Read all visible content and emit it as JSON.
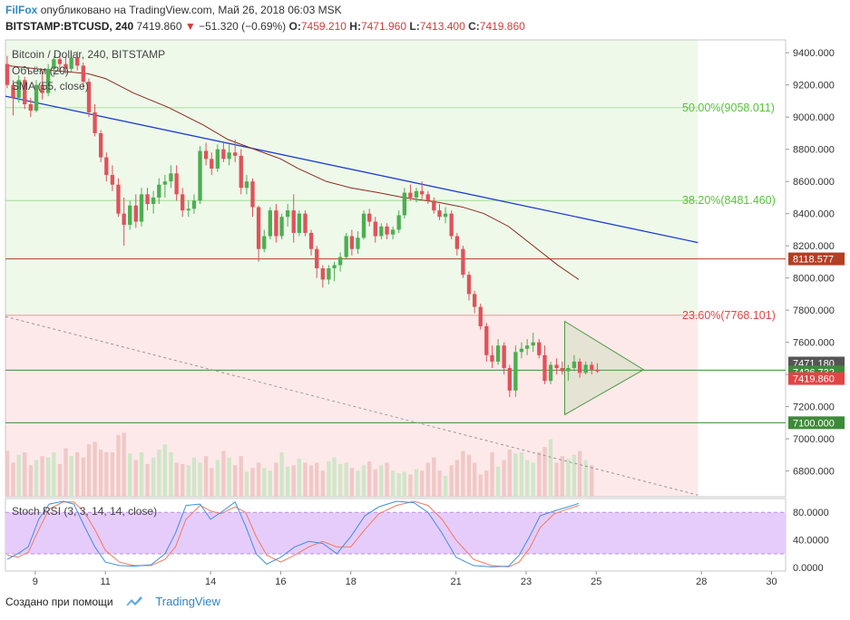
{
  "header": {
    "brand": "FilFox",
    "published_text": "опубликовано на TradingView.com, Май 26, 2018 06:03 MSK",
    "symbol": "BITSTAMP:BTCUSD, 240",
    "last": "7419.860",
    "change_arrow": "▼",
    "change": "−51.320 (−0.69%)",
    "o_label": "O:",
    "o_value": "7459.210",
    "h_label": "H:",
    "h_value": "7471.960",
    "l_label": "L:",
    "l_value": "7413.400",
    "c_label": "C:",
    "c_value": "7419.860"
  },
  "legend": {
    "title": "Bitcoin / Dollar, 240, BITSTAMP",
    "volume": "Объём (20)",
    "sma": "SMA (55, close)"
  },
  "stoch_legend": "Stoch RSI (3, 3, 14, 14, close)",
  "footer": {
    "created_with": "Создано при помощи",
    "brand": "TradingView",
    "icon": "tradingview-cloud-icon"
  },
  "colors": {
    "up": "#4caf50",
    "down": "#e0525a",
    "sma": "#8b2b1a",
    "trendline": "#1f3fcf",
    "fib50": "#58c23a",
    "fib382": "#58c23a",
    "fib236": "#e24545",
    "level_line": "#b33f25",
    "green_zone": "#eef9ea",
    "red_zone": "#fde9e9",
    "stoch_band": "#e6ccfb",
    "stoch_k": "#3f8fe0",
    "stoch_d": "#f07a60"
  },
  "chart_data": {
    "type": "candlestick",
    "title": "Bitcoin / Dollar, 240, BITSTAMP",
    "x_tick_labels": [
      "9",
      "11",
      "14",
      "16",
      "18",
      "21",
      "23",
      "25",
      "28",
      "30"
    ],
    "x_tick_days": [
      9,
      11,
      14,
      16,
      18,
      21,
      23,
      25,
      28,
      30
    ],
    "y_tick_labels": [
      "6800.000",
      "7000.000",
      "7200.000",
      "7400.000",
      "7600.000",
      "7800.000",
      "8000.000",
      "8200.000",
      "8400.000",
      "8600.000",
      "8800.000",
      "9000.000",
      "9200.000",
      "9400.000"
    ],
    "ylim": [
      6640,
      9480
    ],
    "xlim_days": [
      8.15,
      30.4
    ],
    "price_labels": [
      {
        "text": "8118.577",
        "value": 8118.577,
        "color": "#b33f25"
      },
      {
        "text": "7471.180",
        "value": 7471.18,
        "color": "#555555"
      },
      {
        "text": "7426.732",
        "value": 7426.732,
        "color": "#3f8a3a"
      },
      {
        "text": "7419.860",
        "value": 7419.86,
        "color": "#e24545"
      },
      {
        "text": "7100.000",
        "value": 7100,
        "color": "#3f8a3a"
      }
    ],
    "fib_levels": [
      {
        "text": "50.00%(9058.011)",
        "value": 9058.011,
        "color": "#58c23a"
      },
      {
        "text": "38.20%(8481.460)",
        "value": 8481.46,
        "color": "#58c23a"
      },
      {
        "text": "23.60%(7768.101)",
        "value": 7768.101,
        "color": "#e24545"
      }
    ],
    "horizontal_levels": [
      8118.577,
      7426.732,
      7100
    ],
    "trendline": {
      "start": [
        8.15,
        9130
      ],
      "end": [
        27.9,
        8220
      ]
    },
    "dotted_line": {
      "start": [
        8.15,
        7760
      ],
      "end": [
        27.9,
        6650
      ]
    },
    "triangle": {
      "top": [
        24.1,
        7730
      ],
      "apex": [
        26.35,
        7430
      ],
      "bottom": [
        24.1,
        7150
      ]
    },
    "candles": [
      [
        8.2,
        9330,
        9380,
        9180,
        9200
      ],
      [
        8.37,
        9200,
        9230,
        9010,
        9120
      ],
      [
        8.53,
        9120,
        9260,
        9090,
        9230
      ],
      [
        8.7,
        9230,
        9250,
        9050,
        9080
      ],
      [
        8.87,
        9080,
        9120,
        9000,
        9040
      ],
      [
        9.03,
        9040,
        9230,
        9030,
        9200
      ],
      [
        9.2,
        9200,
        9300,
        9110,
        9150
      ],
      [
        9.37,
        9150,
        9330,
        9130,
        9300
      ],
      [
        9.53,
        9300,
        9380,
        9250,
        9360
      ],
      [
        9.7,
        9360,
        9400,
        9280,
        9330
      ],
      [
        9.87,
        9330,
        9380,
        9270,
        9300
      ],
      [
        10.03,
        9300,
        9400,
        9280,
        9370
      ],
      [
        10.2,
        9370,
        9410,
        9290,
        9320
      ],
      [
        10.37,
        9320,
        9340,
        9180,
        9220
      ],
      [
        10.53,
        9220,
        9240,
        9000,
        9030
      ],
      [
        10.7,
        9030,
        9080,
        8880,
        8900
      ],
      [
        10.87,
        8900,
        8920,
        8720,
        8750
      ],
      [
        11.03,
        8750,
        8780,
        8600,
        8640
      ],
      [
        11.2,
        8640,
        8700,
        8540,
        8580
      ],
      [
        11.37,
        8580,
        8620,
        8380,
        8400
      ],
      [
        11.53,
        8400,
        8500,
        8200,
        8330
      ],
      [
        11.7,
        8330,
        8480,
        8300,
        8450
      ],
      [
        11.87,
        8450,
        8520,
        8310,
        8350
      ],
      [
        12.03,
        8350,
        8560,
        8320,
        8520
      ],
      [
        12.2,
        8520,
        8560,
        8420,
        8460
      ],
      [
        12.37,
        8460,
        8540,
        8400,
        8500
      ],
      [
        12.53,
        8500,
        8620,
        8460,
        8580
      ],
      [
        12.7,
        8580,
        8640,
        8500,
        8600
      ],
      [
        12.87,
        8600,
        8700,
        8560,
        8650
      ],
      [
        13.03,
        8650,
        8700,
        8480,
        8520
      ],
      [
        13.2,
        8520,
        8560,
        8380,
        8420
      ],
      [
        13.37,
        8420,
        8480,
        8380,
        8430
      ],
      [
        13.53,
        8430,
        8520,
        8400,
        8480
      ],
      [
        13.7,
        8480,
        8820,
        8460,
        8790
      ],
      [
        13.87,
        8790,
        8840,
        8700,
        8740
      ],
      [
        14.03,
        8740,
        8780,
        8640,
        8680
      ],
      [
        14.2,
        8680,
        8830,
        8660,
        8800
      ],
      [
        14.37,
        8800,
        8850,
        8720,
        8740
      ],
      [
        14.53,
        8740,
        8830,
        8700,
        8780
      ],
      [
        14.7,
        8780,
        8860,
        8720,
        8760
      ],
      [
        14.87,
        8760,
        8800,
        8520,
        8560
      ],
      [
        15.03,
        8560,
        8640,
        8520,
        8600
      ],
      [
        15.2,
        8600,
        8620,
        8380,
        8440
      ],
      [
        15.37,
        8440,
        8450,
        8100,
        8180
      ],
      [
        15.53,
        8180,
        8300,
        8160,
        8260
      ],
      [
        15.7,
        8260,
        8440,
        8240,
        8420
      ],
      [
        15.87,
        8420,
        8460,
        8220,
        8260
      ],
      [
        16.03,
        8260,
        8400,
        8240,
        8380
      ],
      [
        16.2,
        8380,
        8460,
        8320,
        8420
      ],
      [
        16.37,
        8420,
        8520,
        8220,
        8280
      ],
      [
        16.53,
        8280,
        8420,
        8260,
        8400
      ],
      [
        16.7,
        8400,
        8420,
        8260,
        8280
      ],
      [
        16.87,
        8280,
        8300,
        8140,
        8180
      ],
      [
        17.03,
        8180,
        8200,
        8000,
        8060
      ],
      [
        17.2,
        8060,
        8080,
        7940,
        7990
      ],
      [
        17.37,
        7990,
        8080,
        7960,
        8060
      ],
      [
        17.53,
        8060,
        8100,
        7980,
        8080
      ],
      [
        17.7,
        8080,
        8160,
        8040,
        8130
      ],
      [
        17.87,
        8130,
        8280,
        8120,
        8260
      ],
      [
        18.03,
        8260,
        8300,
        8140,
        8180
      ],
      [
        18.2,
        8180,
        8290,
        8150,
        8250
      ],
      [
        18.37,
        8250,
        8420,
        8240,
        8400
      ],
      [
        18.53,
        8400,
        8430,
        8320,
        8350
      ],
      [
        18.7,
        8350,
        8380,
        8220,
        8260
      ],
      [
        18.87,
        8260,
        8340,
        8240,
        8320
      ],
      [
        19.03,
        8320,
        8340,
        8240,
        8270
      ],
      [
        19.2,
        8270,
        8320,
        8240,
        8300
      ],
      [
        19.37,
        8300,
        8420,
        8280,
        8390
      ],
      [
        19.53,
        8390,
        8560,
        8370,
        8530
      ],
      [
        19.7,
        8530,
        8580,
        8480,
        8500
      ],
      [
        19.87,
        8500,
        8560,
        8470,
        8540
      ],
      [
        20.03,
        8540,
        8600,
        8490,
        8520
      ],
      [
        20.2,
        8520,
        8540,
        8460,
        8480
      ],
      [
        20.37,
        8480,
        8500,
        8400,
        8420
      ],
      [
        20.53,
        8420,
        8460,
        8360,
        8380
      ],
      [
        20.7,
        8380,
        8440,
        8340,
        8400
      ],
      [
        20.87,
        8400,
        8420,
        8240,
        8260
      ],
      [
        21.03,
        8260,
        8280,
        8140,
        8180
      ],
      [
        21.2,
        8180,
        8200,
        8000,
        8020
      ],
      [
        21.37,
        8020,
        8040,
        7860,
        7900
      ],
      [
        21.53,
        7900,
        7920,
        7780,
        7820
      ],
      [
        21.7,
        7820,
        7840,
        7680,
        7700
      ],
      [
        21.87,
        7700,
        7720,
        7480,
        7520
      ],
      [
        22.03,
        7520,
        7580,
        7440,
        7480
      ],
      [
        22.2,
        7480,
        7620,
        7460,
        7580
      ],
      [
        22.37,
        7580,
        7600,
        7400,
        7440
      ],
      [
        22.53,
        7440,
        7460,
        7260,
        7300
      ],
      [
        22.7,
        7300,
        7580,
        7260,
        7540
      ],
      [
        22.87,
        7540,
        7600,
        7500,
        7560
      ],
      [
        23.03,
        7560,
        7620,
        7520,
        7580
      ],
      [
        23.2,
        7580,
        7660,
        7540,
        7600
      ],
      [
        23.37,
        7600,
        7620,
        7500,
        7520
      ],
      [
        23.53,
        7520,
        7580,
        7340,
        7360
      ],
      [
        23.7,
        7360,
        7480,
        7340,
        7460
      ],
      [
        23.87,
        7460,
        7500,
        7400,
        7440
      ],
      [
        24.03,
        7440,
        7480,
        7400,
        7420
      ],
      [
        24.2,
        7420,
        7460,
        7360,
        7440
      ],
      [
        24.37,
        7440,
        7520,
        7420,
        7480
      ],
      [
        24.53,
        7480,
        7500,
        7380,
        7410
      ],
      [
        24.7,
        7410,
        7480,
        7400,
        7460
      ],
      [
        24.87,
        7460,
        7480,
        7400,
        7430
      ],
      [
        25.03,
        7430,
        7470,
        7410,
        7420
      ]
    ],
    "volume_ylim": [
      0,
      9
    ],
    "volume": [
      3.5,
      2.6,
      3.2,
      3.4,
      2.4,
      2.8,
      3.1,
      3.0,
      3.4,
      2.5,
      3.7,
      3.1,
      3.4,
      3.0,
      4.0,
      4.2,
      3.6,
      3.4,
      3.4,
      4.7,
      4.9,
      3.3,
      2.8,
      3.4,
      2.5,
      3.0,
      3.6,
      4.0,
      3.4,
      2.6,
      2.5,
      2.4,
      3.0,
      2.6,
      3.1,
      2.2,
      2.8,
      3.5,
      3.0,
      2.4,
      3.1,
      1.9,
      2.2,
      2.6,
      2.2,
      2.0,
      2.6,
      3.4,
      2.3,
      2.4,
      2.9,
      2.6,
      2.4,
      2.6,
      2.0,
      2.7,
      3.0,
      2.5,
      2.6,
      2.2,
      2.0,
      2.4,
      2.7,
      2.1,
      2.4,
      2.6,
      2.0,
      1.8,
      1.9,
      1.7,
      2.1,
      2.0,
      2.6,
      3.0,
      2.0,
      1.6,
      2.4,
      2.8,
      3.5,
      3.2,
      2.6,
      1.7,
      2.0,
      3.4,
      2.3,
      2.8,
      3.6,
      3.3,
      3.4,
      2.8,
      2.6,
      3.4,
      3.8,
      4.4,
      2.6,
      3.1,
      2.9,
      3.2,
      3.5,
      2.8,
      2.4
    ],
    "sma": [
      [
        8.2,
        9320
      ],
      [
        9.5,
        9290
      ],
      [
        10.5,
        9270
      ],
      [
        11.0,
        9240
      ],
      [
        11.8,
        9150
      ],
      [
        12.8,
        9060
      ],
      [
        13.8,
        8950
      ],
      [
        14.5,
        8860
      ],
      [
        15.5,
        8780
      ],
      [
        16.0,
        8740
      ],
      [
        16.5,
        8680
      ],
      [
        17.3,
        8600
      ],
      [
        18.0,
        8560
      ],
      [
        18.8,
        8530
      ],
      [
        19.5,
        8500
      ],
      [
        20.5,
        8470
      ],
      [
        21.2,
        8440
      ],
      [
        21.8,
        8400
      ],
      [
        22.5,
        8320
      ],
      [
        23.2,
        8200
      ],
      [
        23.9,
        8080
      ],
      [
        24.5,
        7990
      ]
    ],
    "stoch": {
      "ylim": [
        -5,
        100
      ],
      "y_tick_labels": [
        "0.0000",
        "40.0000",
        "80.0000"
      ],
      "band": [
        20,
        80
      ],
      "k": [
        [
          8.2,
          12
        ],
        [
          8.5,
          20
        ],
        [
          8.8,
          30
        ],
        [
          9.1,
          70
        ],
        [
          9.4,
          92
        ],
        [
          9.8,
          96
        ],
        [
          10.1,
          92
        ],
        [
          10.4,
          60
        ],
        [
          10.7,
          30
        ],
        [
          11.0,
          8
        ],
        [
          11.4,
          3
        ],
        [
          11.8,
          2
        ],
        [
          12.3,
          4
        ],
        [
          12.7,
          20
        ],
        [
          13.0,
          50
        ],
        [
          13.3,
          90
        ],
        [
          13.7,
          92
        ],
        [
          14.0,
          70
        ],
        [
          14.3,
          80
        ],
        [
          14.7,
          95
        ],
        [
          15.0,
          60
        ],
        [
          15.3,
          20
        ],
        [
          15.6,
          5
        ],
        [
          16.0,
          15
        ],
        [
          16.4,
          30
        ],
        [
          16.8,
          38
        ],
        [
          17.2,
          35
        ],
        [
          17.6,
          20
        ],
        [
          18.0,
          45
        ],
        [
          18.4,
          75
        ],
        [
          18.8,
          88
        ],
        [
          19.3,
          96
        ],
        [
          19.8,
          94
        ],
        [
          20.2,
          80
        ],
        [
          20.6,
          50
        ],
        [
          21.0,
          15
        ],
        [
          21.5,
          3
        ],
        [
          22.0,
          1
        ],
        [
          22.5,
          2
        ],
        [
          22.8,
          18
        ],
        [
          23.1,
          45
        ],
        [
          23.4,
          75
        ],
        [
          23.8,
          82
        ],
        [
          24.2,
          88
        ],
        [
          24.5,
          93
        ]
      ],
      "d": [
        [
          8.2,
          18
        ],
        [
          8.5,
          15
        ],
        [
          8.8,
          22
        ],
        [
          9.1,
          55
        ],
        [
          9.4,
          85
        ],
        [
          9.8,
          95
        ],
        [
          10.1,
          95
        ],
        [
          10.4,
          80
        ],
        [
          10.7,
          55
        ],
        [
          11.0,
          25
        ],
        [
          11.4,
          8
        ],
        [
          11.8,
          3
        ],
        [
          12.3,
          3
        ],
        [
          12.7,
          12
        ],
        [
          13.0,
          30
        ],
        [
          13.3,
          70
        ],
        [
          13.7,
          90
        ],
        [
          14.0,
          82
        ],
        [
          14.3,
          78
        ],
        [
          14.7,
          88
        ],
        [
          15.0,
          80
        ],
        [
          15.3,
          45
        ],
        [
          15.6,
          18
        ],
        [
          16.0,
          8
        ],
        [
          16.4,
          18
        ],
        [
          16.8,
          30
        ],
        [
          17.2,
          38
        ],
        [
          17.6,
          30
        ],
        [
          18.0,
          30
        ],
        [
          18.4,
          55
        ],
        [
          18.8,
          78
        ],
        [
          19.3,
          90
        ],
        [
          19.8,
          96
        ],
        [
          20.2,
          90
        ],
        [
          20.6,
          70
        ],
        [
          21.0,
          40
        ],
        [
          21.5,
          12
        ],
        [
          22.0,
          3
        ],
        [
          22.5,
          1
        ],
        [
          22.8,
          8
        ],
        [
          23.1,
          28
        ],
        [
          23.4,
          58
        ],
        [
          23.8,
          78
        ],
        [
          24.2,
          85
        ],
        [
          24.5,
          90
        ]
      ]
    }
  }
}
